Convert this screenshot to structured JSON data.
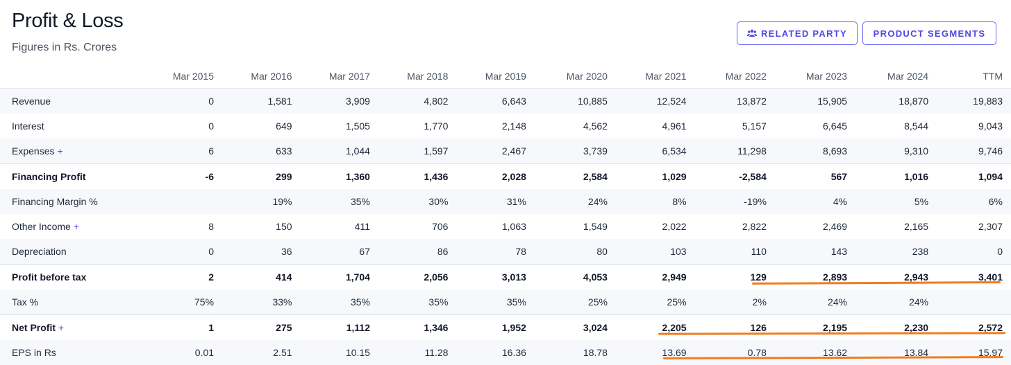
{
  "header": {
    "title": "Profit & Loss",
    "subtitle": "Figures in Rs. Crores",
    "related_party_label": "RELATED PARTY",
    "product_segments_label": "PRODUCT SEGMENTS"
  },
  "table": {
    "columns": [
      "Mar 2015",
      "Mar 2016",
      "Mar 2017",
      "Mar 2018",
      "Mar 2019",
      "Mar 2020",
      "Mar 2021",
      "Mar 2022",
      "Mar 2023",
      "Mar 2024",
      "TTM"
    ],
    "rows": [
      {
        "label": "Revenue",
        "expandable": false,
        "bold": false,
        "values": [
          "0",
          "1,581",
          "3,909",
          "4,802",
          "6,643",
          "10,885",
          "12,524",
          "13,872",
          "15,905",
          "18,870",
          "19,883"
        ]
      },
      {
        "label": "Interest",
        "expandable": false,
        "bold": false,
        "values": [
          "0",
          "649",
          "1,505",
          "1,770",
          "2,148",
          "4,562",
          "4,961",
          "5,157",
          "6,645",
          "8,544",
          "9,043"
        ]
      },
      {
        "label": "Expenses",
        "expandable": true,
        "bold": false,
        "values": [
          "6",
          "633",
          "1,044",
          "1,597",
          "2,467",
          "3,739",
          "6,534",
          "11,298",
          "8,693",
          "9,310",
          "9,746"
        ]
      },
      {
        "label": "Financing Profit",
        "expandable": false,
        "bold": true,
        "values": [
          "-6",
          "299",
          "1,360",
          "1,436",
          "2,028",
          "2,584",
          "1,029",
          "-2,584",
          "567",
          "1,016",
          "1,094"
        ]
      },
      {
        "label": "Financing Margin %",
        "expandable": false,
        "bold": false,
        "values": [
          "",
          "19%",
          "35%",
          "30%",
          "31%",
          "24%",
          "8%",
          "-19%",
          "4%",
          "5%",
          "6%"
        ]
      },
      {
        "label": "Other Income",
        "expandable": true,
        "bold": false,
        "values": [
          "8",
          "150",
          "411",
          "706",
          "1,063",
          "1,549",
          "2,022",
          "2,822",
          "2,469",
          "2,165",
          "2,307"
        ]
      },
      {
        "label": "Depreciation",
        "expandable": false,
        "bold": false,
        "values": [
          "0",
          "36",
          "67",
          "86",
          "78",
          "80",
          "103",
          "110",
          "143",
          "238",
          "0"
        ]
      },
      {
        "label": "Profit before tax",
        "expandable": false,
        "bold": true,
        "values": [
          "2",
          "414",
          "1,704",
          "2,056",
          "3,013",
          "4,053",
          "2,949",
          "129",
          "2,893",
          "2,943",
          "3,401"
        ]
      },
      {
        "label": "Tax %",
        "expandable": false,
        "bold": false,
        "values": [
          "75%",
          "33%",
          "35%",
          "35%",
          "35%",
          "25%",
          "25%",
          "2%",
          "24%",
          "24%",
          ""
        ]
      },
      {
        "label": "Net Profit",
        "expandable": true,
        "bold": true,
        "values": [
          "1",
          "275",
          "1,112",
          "1,346",
          "1,952",
          "3,024",
          "2,205",
          "126",
          "2,195",
          "2,230",
          "2,572"
        ]
      },
      {
        "label": "EPS in Rs",
        "expandable": false,
        "bold": false,
        "values": [
          "0.01",
          "2.51",
          "10.15",
          "11.28",
          "16.36",
          "18.78",
          "13.69",
          "0.78",
          "13.62",
          "13.84",
          "15.97"
        ]
      }
    ]
  },
  "plus_symbol": "+",
  "colors": {
    "accent": "#4f46e5",
    "highlight": "#f07c1e",
    "stripe": "#f6f8fc"
  }
}
